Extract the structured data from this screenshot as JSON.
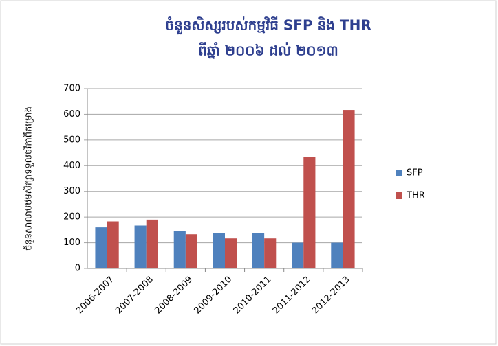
{
  "chart_data": {
    "type": "bar",
    "title": "ចំនួនសិស្សរបស់កម្មវិធី SFP និង THR",
    "subtitle": "ពីឆ្នាំ ២០០៦ ដល់ ២០១៣",
    "y_label": "ចំនួនសាលាបឋមសិក្សាទទួលថវិកាពីគម្រោង",
    "categories": [
      "2006-2007",
      "2007-2008",
      "2008-2009",
      "2009-2010",
      "2010-2011",
      "2011-2012",
      "2012-2013"
    ],
    "series": [
      {
        "name": "SFP",
        "color": "#4f81bd",
        "values": [
          160,
          167,
          145,
          137,
          137,
          100,
          100
        ]
      },
      {
        "name": "THR",
        "color": "#c0504d",
        "values": [
          183,
          190,
          133,
          117,
          117,
          433,
          617
        ]
      }
    ],
    "ylim": [
      0,
      700
    ],
    "yticks": [
      0,
      100,
      200,
      300,
      400,
      500,
      600,
      700
    ],
    "grid": true,
    "legend": "right"
  }
}
